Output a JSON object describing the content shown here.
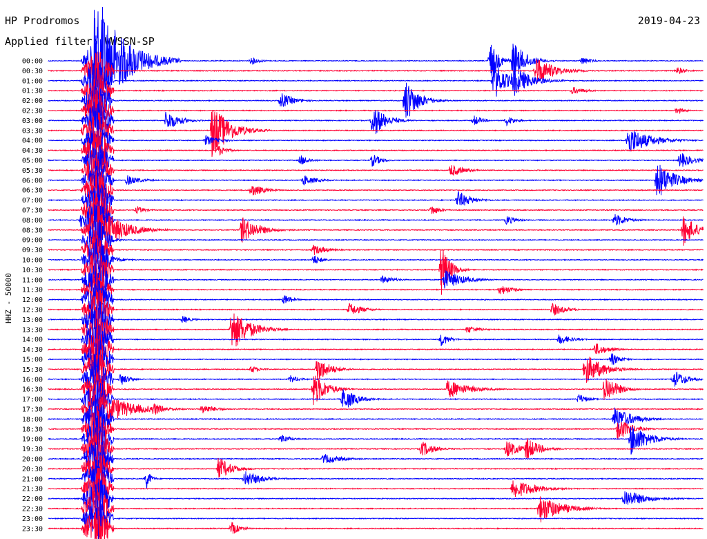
{
  "header": {
    "station": "HP Prodromos",
    "date": "2019-04-23",
    "filter_label": "Applied filter: WWSSN-SP",
    "channel_label": "HHZ - 50000"
  },
  "colors": {
    "even": "#0000ff",
    "odd": "#ff0033"
  },
  "chart_data": {
    "type": "line",
    "title": "HP Prodromos",
    "subtitle": "Applied filter: WWSSN-SP",
    "ylabel": "HHZ - 50000",
    "xlabel": "",
    "row_labels": [
      "00:00",
      "00:30",
      "01:00",
      "01:30",
      "02:00",
      "02:30",
      "03:00",
      "03:30",
      "04:00",
      "04:30",
      "05:00",
      "05:30",
      "06:00",
      "06:30",
      "07:00",
      "07:30",
      "08:00",
      "08:30",
      "09:00",
      "09:30",
      "10:00",
      "10:30",
      "11:00",
      "11:30",
      "12:00",
      "12:30",
      "13:00",
      "13:30",
      "14:00",
      "14:30",
      "15:00",
      "15:30",
      "16:00",
      "16:30",
      "17:00",
      "17:30",
      "18:00",
      "18:30",
      "19:00",
      "19:30",
      "20:00",
      "20:30",
      "21:00",
      "21:30",
      "22:00",
      "22:30",
      "23:00",
      "23:30"
    ],
    "row_minutes": 30,
    "grid": false,
    "events": [
      {
        "row": 0,
        "t": 0.07,
        "amp": 110,
        "dur": 0.06
      },
      {
        "row": 0,
        "t": 0.31,
        "amp": 6,
        "dur": 0.02
      },
      {
        "row": 0,
        "t": 0.675,
        "amp": 28,
        "dur": 0.02
      },
      {
        "row": 0,
        "t": 0.71,
        "amp": 30,
        "dur": 0.03
      },
      {
        "row": 0,
        "t": 0.815,
        "amp": 6,
        "dur": 0.02
      },
      {
        "row": 1,
        "t": 0.745,
        "amp": 22,
        "dur": 0.04
      },
      {
        "row": 1,
        "t": 0.96,
        "amp": 6,
        "dur": 0.02
      },
      {
        "row": 2,
        "t": 0.68,
        "amp": 30,
        "dur": 0.03
      },
      {
        "row": 2,
        "t": 0.71,
        "amp": 24,
        "dur": 0.04
      },
      {
        "row": 3,
        "t": 0.8,
        "amp": 6,
        "dur": 0.03
      },
      {
        "row": 4,
        "t": 0.355,
        "amp": 12,
        "dur": 0.03
      },
      {
        "row": 4,
        "t": 0.545,
        "amp": 34,
        "dur": 0.03
      },
      {
        "row": 5,
        "t": 0.96,
        "amp": 5,
        "dur": 0.02
      },
      {
        "row": 6,
        "t": 0.18,
        "amp": 16,
        "dur": 0.03
      },
      {
        "row": 6,
        "t": 0.495,
        "amp": 26,
        "dur": 0.03
      },
      {
        "row": 6,
        "t": 0.7,
        "amp": 8,
        "dur": 0.02
      },
      {
        "row": 6,
        "t": 0.65,
        "amp": 8,
        "dur": 0.02
      },
      {
        "row": 7,
        "t": 0.25,
        "amp": 42,
        "dur": 0.04
      },
      {
        "row": 8,
        "t": 0.885,
        "amp": 22,
        "dur": 0.05
      },
      {
        "row": 8,
        "t": 0.24,
        "amp": 8,
        "dur": 0.03
      },
      {
        "row": 9,
        "t": 0.26,
        "amp": 8,
        "dur": 0.02
      },
      {
        "row": 10,
        "t": 0.385,
        "amp": 8,
        "dur": 0.02
      },
      {
        "row": 10,
        "t": 0.495,
        "amp": 10,
        "dur": 0.02
      },
      {
        "row": 10,
        "t": 0.965,
        "amp": 12,
        "dur": 0.03
      },
      {
        "row": 11,
        "t": 0.615,
        "amp": 10,
        "dur": 0.03
      },
      {
        "row": 12,
        "t": 0.12,
        "amp": 8,
        "dur": 0.03
      },
      {
        "row": 12,
        "t": 0.39,
        "amp": 8,
        "dur": 0.03
      },
      {
        "row": 12,
        "t": 0.93,
        "amp": 28,
        "dur": 0.04
      },
      {
        "row": 13,
        "t": 0.31,
        "amp": 10,
        "dur": 0.03
      },
      {
        "row": 14,
        "t": 0.625,
        "amp": 14,
        "dur": 0.03
      },
      {
        "row": 15,
        "t": 0.135,
        "amp": 6,
        "dur": 0.02
      },
      {
        "row": 15,
        "t": 0.585,
        "amp": 8,
        "dur": 0.02
      },
      {
        "row": 16,
        "t": 0.7,
        "amp": 8,
        "dur": 0.02
      },
      {
        "row": 16,
        "t": 0.865,
        "amp": 10,
        "dur": 0.03
      },
      {
        "row": 16,
        "t": 0.05,
        "amp": 12,
        "dur": 0.02
      },
      {
        "row": 17,
        "t": 0.075,
        "amp": 40,
        "dur": 0.05
      },
      {
        "row": 17,
        "t": 0.295,
        "amp": 20,
        "dur": 0.04
      },
      {
        "row": 17,
        "t": 0.97,
        "amp": 24,
        "dur": 0.03
      },
      {
        "row": 18,
        "t": 0.085,
        "amp": 10,
        "dur": 0.02
      },
      {
        "row": 19,
        "t": 0.405,
        "amp": 8,
        "dur": 0.03
      },
      {
        "row": 20,
        "t": 0.085,
        "amp": 10,
        "dur": 0.03
      },
      {
        "row": 20,
        "t": 0.405,
        "amp": 8,
        "dur": 0.02
      },
      {
        "row": 21,
        "t": 0.6,
        "amp": 40,
        "dur": 0.02
      },
      {
        "row": 22,
        "t": 0.605,
        "amp": 16,
        "dur": 0.04
      },
      {
        "row": 22,
        "t": 0.51,
        "amp": 6,
        "dur": 0.03
      },
      {
        "row": 23,
        "t": 0.69,
        "amp": 8,
        "dur": 0.03
      },
      {
        "row": 24,
        "t": 0.36,
        "amp": 8,
        "dur": 0.02
      },
      {
        "row": 25,
        "t": 0.46,
        "amp": 10,
        "dur": 0.03
      },
      {
        "row": 25,
        "t": 0.77,
        "amp": 10,
        "dur": 0.03
      },
      {
        "row": 26,
        "t": 0.205,
        "amp": 6,
        "dur": 0.02
      },
      {
        "row": 27,
        "t": 0.28,
        "amp": 34,
        "dur": 0.04
      },
      {
        "row": 27,
        "t": 0.64,
        "amp": 6,
        "dur": 0.03
      },
      {
        "row": 28,
        "t": 0.6,
        "amp": 10,
        "dur": 0.02
      },
      {
        "row": 28,
        "t": 0.78,
        "amp": 8,
        "dur": 0.03
      },
      {
        "row": 29,
        "t": 0.835,
        "amp": 10,
        "dur": 0.03
      },
      {
        "row": 30,
        "t": 0.86,
        "amp": 10,
        "dur": 0.02
      },
      {
        "row": 31,
        "t": 0.41,
        "amp": 20,
        "dur": 0.03
      },
      {
        "row": 31,
        "t": 0.82,
        "amp": 24,
        "dur": 0.04
      },
      {
        "row": 31,
        "t": 0.31,
        "amp": 6,
        "dur": 0.02
      },
      {
        "row": 32,
        "t": 0.11,
        "amp": 10,
        "dur": 0.02
      },
      {
        "row": 32,
        "t": 0.37,
        "amp": 6,
        "dur": 0.02
      },
      {
        "row": 32,
        "t": 0.955,
        "amp": 14,
        "dur": 0.03
      },
      {
        "row": 33,
        "t": 0.405,
        "amp": 26,
        "dur": 0.03
      },
      {
        "row": 33,
        "t": 0.61,
        "amp": 14,
        "dur": 0.05
      },
      {
        "row": 33,
        "t": 0.85,
        "amp": 22,
        "dur": 0.03
      },
      {
        "row": 34,
        "t": 0.45,
        "amp": 18,
        "dur": 0.03
      },
      {
        "row": 34,
        "t": 0.81,
        "amp": 8,
        "dur": 0.02
      },
      {
        "row": 35,
        "t": 0.09,
        "amp": 22,
        "dur": 0.06
      },
      {
        "row": 35,
        "t": 0.16,
        "amp": 10,
        "dur": 0.03
      },
      {
        "row": 35,
        "t": 0.235,
        "amp": 8,
        "dur": 0.03
      },
      {
        "row": 36,
        "t": 0.865,
        "amp": 20,
        "dur": 0.04
      },
      {
        "row": 37,
        "t": 0.87,
        "amp": 18,
        "dur": 0.03
      },
      {
        "row": 38,
        "t": 0.355,
        "amp": 8,
        "dur": 0.02
      },
      {
        "row": 38,
        "t": 0.89,
        "amp": 24,
        "dur": 0.04
      },
      {
        "row": 39,
        "t": 0.57,
        "amp": 12,
        "dur": 0.03
      },
      {
        "row": 39,
        "t": 0.7,
        "amp": 14,
        "dur": 0.03
      },
      {
        "row": 39,
        "t": 0.73,
        "amp": 18,
        "dur": 0.03
      },
      {
        "row": 40,
        "t": 0.42,
        "amp": 8,
        "dur": 0.04
      },
      {
        "row": 41,
        "t": 0.26,
        "amp": 18,
        "dur": 0.03
      },
      {
        "row": 42,
        "t": 0.3,
        "amp": 12,
        "dur": 0.04
      },
      {
        "row": 42,
        "t": 0.15,
        "amp": 16,
        "dur": 0.01
      },
      {
        "row": 43,
        "t": 0.71,
        "amp": 16,
        "dur": 0.05
      },
      {
        "row": 44,
        "t": 0.88,
        "amp": 14,
        "dur": 0.05
      },
      {
        "row": 45,
        "t": 0.75,
        "amp": 22,
        "dur": 0.05
      },
      {
        "row": 47,
        "t": 0.28,
        "amp": 10,
        "dur": 0.02
      }
    ],
    "continuous": {
      "start_row": 0,
      "end_row": 47,
      "t": 0.075,
      "amp": 30
    }
  }
}
